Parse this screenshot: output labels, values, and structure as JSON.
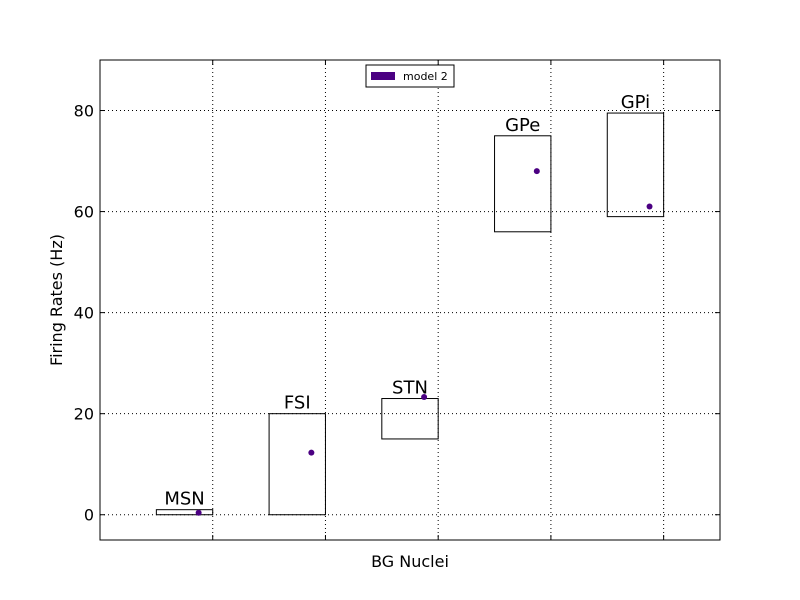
{
  "chart_data": {
    "type": "scatter",
    "xlabel": "BG Nuclei",
    "ylabel": "Firing Rates (Hz)",
    "ylim": [
      -5,
      90
    ],
    "yticks": [
      0,
      20,
      40,
      60,
      80
    ],
    "grid": true,
    "legend": {
      "placement": "top-center",
      "entries": [
        "model 2"
      ]
    },
    "colors": {
      "series": "#4b0082"
    },
    "categories": [
      "MSN",
      "FSI",
      "STN",
      "GPe",
      "GPi"
    ],
    "ranges": [
      {
        "name": "MSN",
        "low": 0,
        "high": 1
      },
      {
        "name": "FSI",
        "low": 0,
        "high": 20
      },
      {
        "name": "STN",
        "low": 15,
        "high": 23
      },
      {
        "name": "GPe",
        "low": 56,
        "high": 75
      },
      {
        "name": "GPi",
        "low": 59,
        "high": 79.5
      }
    ],
    "series": [
      {
        "name": "model 2",
        "values": [
          0.4,
          12.3,
          23.3,
          68,
          61
        ]
      }
    ]
  }
}
